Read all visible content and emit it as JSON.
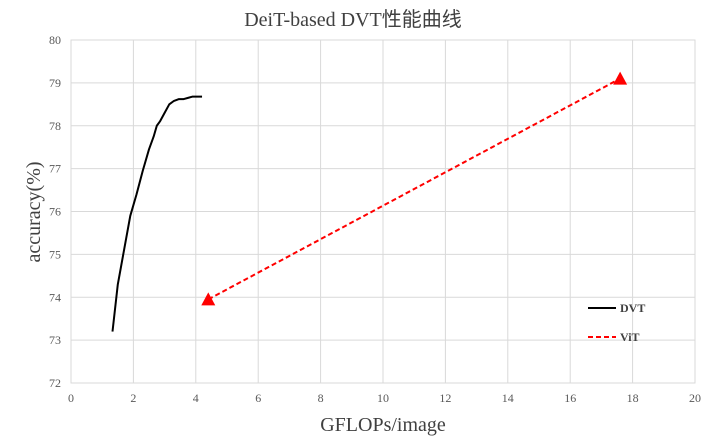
{
  "chart_data": {
    "type": "line",
    "title": "DeiT-based DVT性能曲线",
    "xlabel": "GFLOPs/image",
    "ylabel": "accuracy(%)",
    "xlim": [
      0,
      20
    ],
    "ylim": [
      72,
      80
    ],
    "xticks": [
      0,
      2,
      4,
      6,
      8,
      10,
      12,
      14,
      16,
      18,
      20
    ],
    "yticks": [
      72,
      73,
      74,
      75,
      76,
      77,
      78,
      79,
      80
    ],
    "grid": true,
    "legend_position": "bottom-right",
    "series": [
      {
        "name": "DVT",
        "color": "#000000",
        "line_style": "solid",
        "marker": "none",
        "x": [
          1.33,
          1.5,
          1.7,
          1.9,
          2.1,
          2.3,
          2.5,
          2.65,
          2.75,
          2.85,
          3.0,
          3.15,
          3.3,
          3.45,
          3.6,
          3.75,
          3.9,
          4.05,
          4.2
        ],
        "y": [
          73.2,
          74.3,
          75.1,
          75.9,
          76.4,
          76.95,
          77.45,
          77.75,
          78.0,
          78.1,
          78.3,
          78.5,
          78.58,
          78.62,
          78.62,
          78.65,
          78.68,
          78.68,
          78.68
        ]
      },
      {
        "name": "ViT",
        "color": "#ff0000",
        "line_style": "dashed",
        "marker": "triangle",
        "x": [
          4.4,
          17.6
        ],
        "y": [
          73.95,
          79.1
        ]
      }
    ]
  }
}
